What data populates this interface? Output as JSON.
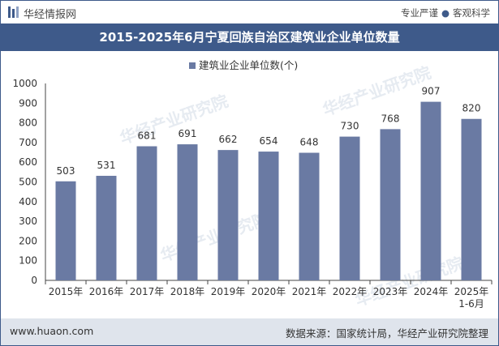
{
  "header": {
    "brand": "华经情报网",
    "slogan_left": "专业严谨",
    "slogan_right": "客观科学"
  },
  "chart_data": {
    "type": "bar",
    "title": "2015-2025年6月宁夏回族自治区建筑业企业单位数量",
    "legend": "建筑业企业单位数(个)",
    "categories": [
      "2015年",
      "2016年",
      "2017年",
      "2018年",
      "2019年",
      "2020年",
      "2021年",
      "2022年",
      "2023年",
      "2024年",
      "2025年\n1-6月"
    ],
    "series": [
      {
        "name": "建筑业企业单位数(个)",
        "values": [
          503,
          531,
          681,
          691,
          662,
          654,
          648,
          730,
          768,
          907,
          820
        ]
      }
    ],
    "ylim": [
      0,
      1000
    ],
    "yticks": [
      0,
      100,
      200,
      300,
      400,
      500,
      600,
      700,
      800,
      900,
      1000
    ],
    "xlabel": "",
    "ylabel": "",
    "bar_color": "#6a7aa3"
  },
  "watermark": "华经产业研究院",
  "footer": {
    "site": "www.huaon.com",
    "source": "数据来源：国家统计局，华经产业研究院整理"
  }
}
